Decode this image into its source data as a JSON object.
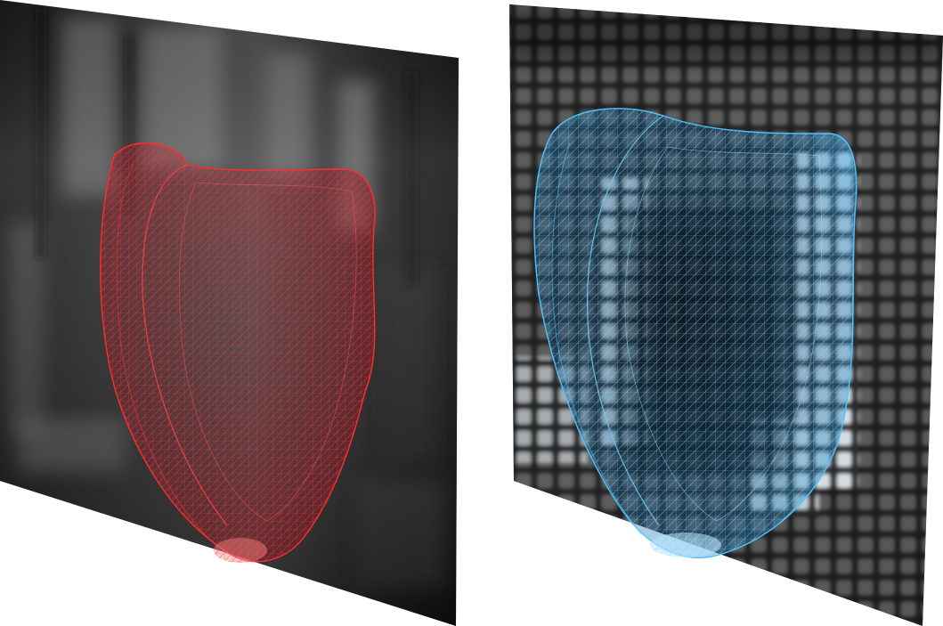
{
  "panels": [
    {
      "name": "left",
      "mesh_color": "#e8202a",
      "mesh_fill": "#c8102a",
      "background": "mri-slice-smooth",
      "icon": "heart-mesh-red-icon"
    },
    {
      "name": "right",
      "mesh_color": "#39b5f0",
      "mesh_fill": "#1f8fd0",
      "background": "mri-slice-tagged-grid",
      "icon": "heart-mesh-blue-icon"
    }
  ]
}
